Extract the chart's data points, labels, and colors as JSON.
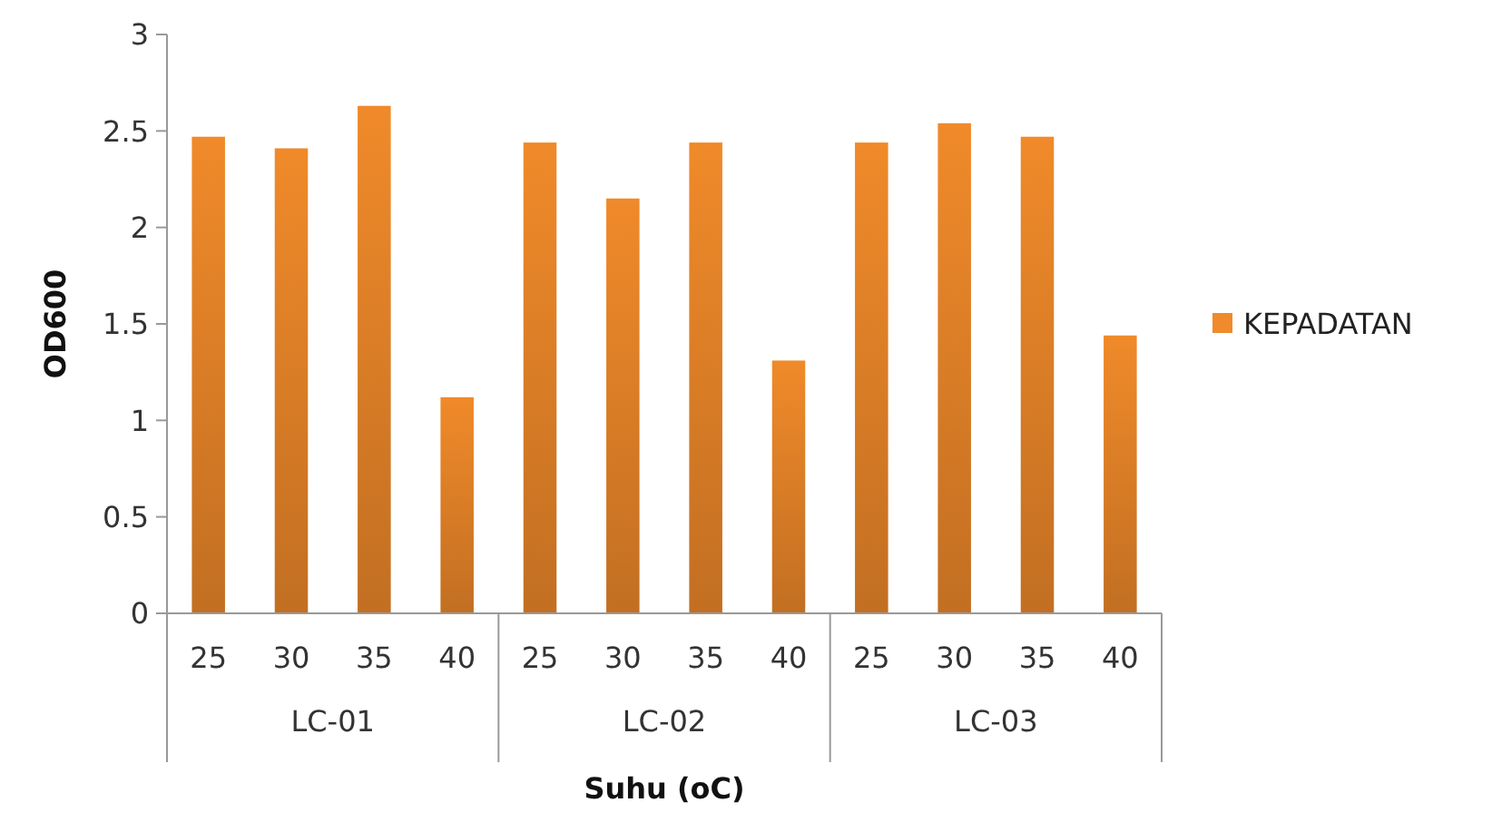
{
  "chart_data": {
    "type": "bar",
    "xlabel": "Suhu (oC)",
    "ylabel": "OD600",
    "categories": [
      "25",
      "30",
      "35",
      "40",
      "25",
      "30",
      "35",
      "40",
      "25",
      "30",
      "35",
      "40"
    ],
    "series": [
      {
        "name": "KEPADATAN",
        "color": "#f08a2a",
        "values": [
          2.47,
          2.41,
          2.63,
          1.12,
          2.44,
          2.15,
          2.44,
          1.31,
          2.44,
          2.54,
          2.47,
          1.44
        ]
      }
    ],
    "annotations": [
      "LC-01",
      "LC-02",
      "LC-03"
    ],
    "ylim": [
      0,
      3
    ],
    "yticks": [
      0,
      0.5,
      1,
      1.5,
      2,
      2.5,
      3
    ],
    "grid": false,
    "legend": "right"
  }
}
